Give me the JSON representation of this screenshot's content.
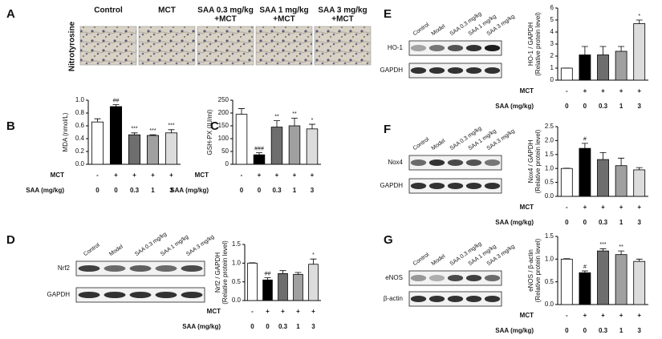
{
  "figure": {
    "panel_a": {
      "letter": "A",
      "row_label": "Nitrotyrosine",
      "columns": [
        [
          "Control"
        ],
        [
          "MCT"
        ],
        [
          "SAA 0.3 mg/kg",
          "+MCT"
        ],
        [
          "SAA 1 mg/kg",
          "+MCT"
        ],
        [
          "SAA 3 mg/kg",
          "+MCT"
        ]
      ]
    },
    "blots": [
      {
        "lanes": [
          "Control",
          "Model",
          "SAA 0.3 mg/kg",
          "SAA 1 mg/kg",
          "SAA 3 mg/kg"
        ],
        "rows": [
          "Nrf2",
          "GAPDH"
        ]
      },
      {
        "lanes": [
          "Control",
          "Model",
          "SAA 0.3 mg/kg",
          "SAA 1 mg/kg",
          "SAA 3 mg/kg"
        ],
        "rows": [
          "HO-1",
          "GAPDH"
        ]
      },
      {
        "lanes": [
          "Control",
          "Model",
          "SAA 0.3 mg/kg",
          "SAA 1 mg/kg",
          "SAA 3 mg/kg"
        ],
        "rows": [
          "Nox4",
          "GAPDH"
        ]
      },
      {
        "lanes": [
          "Control",
          "Model",
          "SAA 0.3 mg/kg",
          "SAA 1 mg/kg",
          "SAA 3 mg/kg"
        ],
        "rows": [
          "eNOS",
          "β-actin"
        ]
      }
    ]
  },
  "chart_data": [
    {
      "type": "bar",
      "panel": "B",
      "ylabel": [
        "MDA (nmol/L)"
      ],
      "values": [
        0.66,
        0.9,
        0.46,
        0.45,
        0.49
      ],
      "errors": [
        0.05,
        0.03,
        0.03,
        0.01,
        0.05
      ],
      "annotations": [
        null,
        "##",
        "***",
        "***",
        "***"
      ],
      "colors": [
        "#ffffff",
        "#000000",
        "#6e6e6e",
        "#a0a0a0",
        "#dcdcdc"
      ],
      "ylim": [
        0,
        1.0
      ],
      "yticks": [
        {
          "value": 0,
          "label": "0.0"
        },
        {
          "value": 0.2,
          "label": "0.2"
        },
        {
          "value": 0.4,
          "label": "0.4"
        },
        {
          "value": 0.6,
          "label": "0.6"
        },
        {
          "value": 0.8,
          "label": "0.8"
        },
        {
          "value": 1.0,
          "label": "1.0"
        }
      ],
      "treatments": [
        {
          "name": "MCT",
          "values": [
            "-",
            "+",
            "+",
            "+",
            "+"
          ]
        },
        {
          "name": "SAA (mg/kg)",
          "values": [
            "0",
            "0",
            "0.3",
            "1",
            "3"
          ]
        }
      ]
    },
    {
      "type": "bar",
      "panel": "C",
      "ylabel": [
        "GSH-PX (IU/ml)"
      ],
      "values": [
        195,
        37,
        145,
        150,
        138
      ],
      "errors": [
        22,
        8,
        25,
        30,
        18
      ],
      "annotations": [
        null,
        "###",
        "**",
        "**",
        "*"
      ],
      "colors": [
        "#ffffff",
        "#000000",
        "#6e6e6e",
        "#a0a0a0",
        "#dcdcdc"
      ],
      "ylim": [
        0,
        250
      ],
      "yticks": [
        0,
        50,
        100,
        150,
        200,
        250
      ],
      "treatments": [
        {
          "name": "MCT",
          "values": [
            "-",
            "+",
            "+",
            "+",
            "+"
          ]
        },
        {
          "name": "SAA (mg/kg)",
          "values": [
            "0",
            "0",
            "0.3",
            "1",
            "3"
          ]
        }
      ]
    },
    {
      "type": "bar",
      "panel": "D",
      "ylabel": [
        "Nrf2 / GAPDH",
        "(Relative protein level)"
      ],
      "values": [
        1.0,
        0.55,
        0.72,
        0.7,
        0.97
      ],
      "errors": [
        0.01,
        0.06,
        0.08,
        0.05,
        0.14
      ],
      "annotations": [
        null,
        "##",
        null,
        null,
        "*"
      ],
      "colors": [
        "#ffffff",
        "#000000",
        "#6e6e6e",
        "#a0a0a0",
        "#dcdcdc"
      ],
      "ylim": [
        0,
        1.5
      ],
      "yticks": [
        {
          "value": 0,
          "label": "0.0"
        },
        {
          "value": 0.5,
          "label": "0.5"
        },
        {
          "value": 1.0,
          "label": "1.0"
        },
        {
          "value": 1.5,
          "label": "1.5"
        }
      ],
      "treatments": [
        {
          "name": "MCT",
          "values": [
            "-",
            "+",
            "+",
            "+",
            "+"
          ]
        },
        {
          "name": "SAA (mg/kg)",
          "values": [
            "0",
            "0",
            "0.3",
            "1",
            "3"
          ]
        }
      ]
    },
    {
      "type": "bar",
      "panel": "E",
      "ylabel": [
        "HO-1 / GAPDH",
        "(Relative protein level)"
      ],
      "values": [
        1.0,
        2.1,
        2.1,
        2.4,
        4.7
      ],
      "errors": [
        0.01,
        0.7,
        0.7,
        0.4,
        0.3
      ],
      "annotations": [
        null,
        null,
        null,
        null,
        "*"
      ],
      "colors": [
        "#ffffff",
        "#000000",
        "#6e6e6e",
        "#a0a0a0",
        "#dcdcdc"
      ],
      "ylim": [
        0,
        6
      ],
      "yticks": [
        0,
        1,
        2,
        3,
        4,
        5,
        6
      ],
      "treatments": [
        {
          "name": "MCT",
          "values": [
            "-",
            "+",
            "+",
            "+",
            "+"
          ]
        },
        {
          "name": "SAA (mg/kg)",
          "values": [
            "0",
            "0",
            "0.3",
            "1",
            "3"
          ]
        }
      ]
    },
    {
      "type": "bar",
      "panel": "F",
      "ylabel": [
        "Nox4 / GAPDH",
        "(Relative protein level)"
      ],
      "values": [
        1.0,
        1.72,
        1.32,
        1.1,
        0.95
      ],
      "errors": [
        0.01,
        0.18,
        0.25,
        0.27,
        0.08
      ],
      "annotations": [
        null,
        "#",
        null,
        null,
        null
      ],
      "colors": [
        "#ffffff",
        "#000000",
        "#6e6e6e",
        "#a0a0a0",
        "#dcdcdc"
      ],
      "ylim": [
        0,
        2.5
      ],
      "yticks": [
        {
          "value": 0,
          "label": "0.0"
        },
        {
          "value": 0.5,
          "label": "0.5"
        },
        {
          "value": 1.0,
          "label": "1.0"
        },
        {
          "value": 1.5,
          "label": "1.5"
        },
        {
          "value": 2.0,
          "label": "2.0"
        },
        {
          "value": 2.5,
          "label": "2.5"
        }
      ],
      "treatments": [
        {
          "name": "MCT",
          "values": [
            "-",
            "+",
            "+",
            "+",
            "+"
          ]
        },
        {
          "name": "SAA (mg/kg)",
          "values": [
            "0",
            "0",
            "0.3",
            "1",
            "3"
          ]
        }
      ]
    },
    {
      "type": "bar",
      "panel": "G",
      "ylabel": [
        "eNOS / β-actin",
        "(Relative protein level)"
      ],
      "values": [
        1.0,
        0.7,
        1.18,
        1.1,
        0.95
      ],
      "errors": [
        0.01,
        0.04,
        0.05,
        0.08,
        0.05
      ],
      "annotations": [
        null,
        "#",
        "***",
        "**",
        null
      ],
      "colors": [
        "#ffffff",
        "#000000",
        "#6e6e6e",
        "#a0a0a0",
        "#dcdcdc"
      ],
      "ylim": [
        0,
        1.5
      ],
      "yticks": [
        {
          "value": 0,
          "label": "0.0"
        },
        {
          "value": 0.5,
          "label": "0.5"
        },
        {
          "value": 1.0,
          "label": "1.0"
        },
        {
          "value": 1.5,
          "label": "1.5"
        }
      ],
      "treatments": [
        {
          "name": "MCT",
          "values": [
            "-",
            "+",
            "+",
            "+",
            "+"
          ]
        },
        {
          "name": "SAA (mg/kg)",
          "values": [
            "0",
            "0",
            "0.3",
            "1",
            "3"
          ]
        }
      ]
    }
  ]
}
